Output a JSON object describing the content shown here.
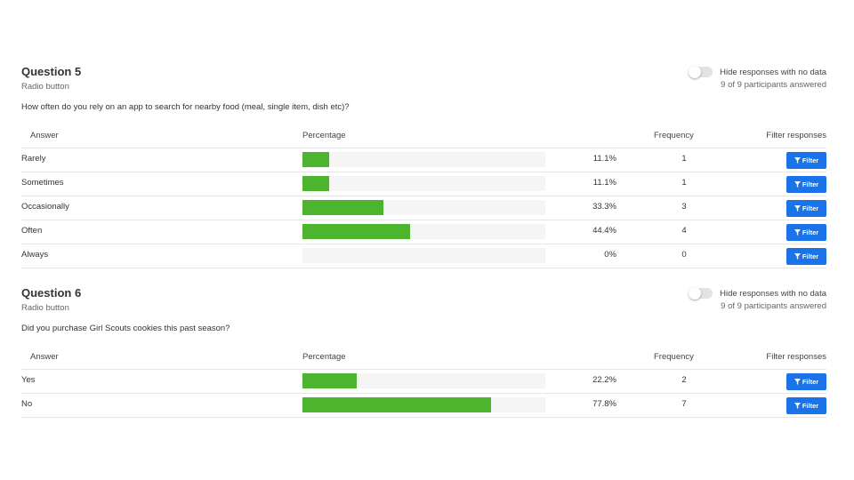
{
  "colors": {
    "bar_fill": "#4cb52d",
    "bar_track": "#f5f5f5",
    "filter_button": "#1a73e8"
  },
  "toggle_label": "Hide responses with no data",
  "table_headers": {
    "answer": "Answer",
    "percentage": "Percentage",
    "frequency": "Frequency",
    "filter": "Filter responses"
  },
  "filter_button_label": "Filter",
  "filter_icon": "funnel-icon",
  "questions": [
    {
      "title": "Question 5",
      "type": "Radio button",
      "participants": "9 of 9 participants answered",
      "prompt": "How often do you rely on an app to search for nearby food (meal, single item, dish etc)?",
      "hide_no_data_toggle_on": false,
      "rows": [
        {
          "answer": "Rarely",
          "percent_label": "11.1%",
          "percent": 11.1,
          "frequency": "1"
        },
        {
          "answer": "Sometimes",
          "percent_label": "11.1%",
          "percent": 11.1,
          "frequency": "1"
        },
        {
          "answer": "Occasionally",
          "percent_label": "33.3%",
          "percent": 33.3,
          "frequency": "3"
        },
        {
          "answer": "Often",
          "percent_label": "44.4%",
          "percent": 44.4,
          "frequency": "4"
        },
        {
          "answer": "Always",
          "percent_label": "0%",
          "percent": 0,
          "frequency": "0"
        }
      ]
    },
    {
      "title": "Question 6",
      "type": "Radio button",
      "participants": "9 of 9 participants answered",
      "prompt": "Did you purchase Girl Scouts cookies this past season?",
      "hide_no_data_toggle_on": false,
      "rows": [
        {
          "answer": "Yes",
          "percent_label": "22.2%",
          "percent": 22.2,
          "frequency": "2"
        },
        {
          "answer": "No",
          "percent_label": "77.8%",
          "percent": 77.8,
          "frequency": "7"
        }
      ]
    }
  ]
}
